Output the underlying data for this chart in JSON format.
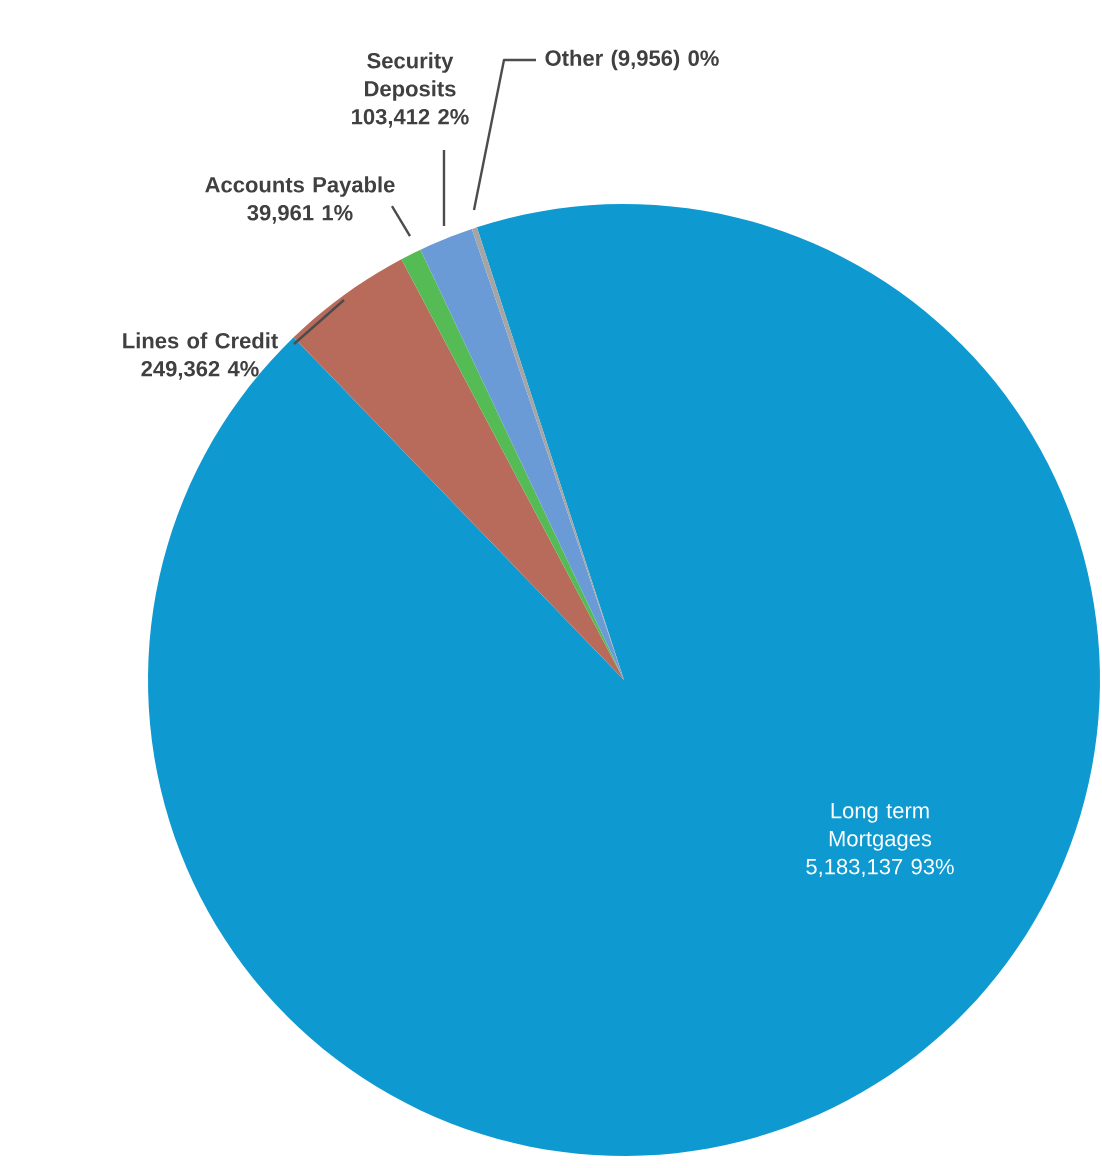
{
  "chart_data": {
    "type": "pie",
    "categories": [
      "Long term Mortgages",
      "Lines of Credit",
      "Accounts Payable",
      "Security Deposits",
      "Other"
    ],
    "values": [
      5183137,
      249362,
      39961,
      103412,
      9956
    ],
    "value_labels": [
      "5,183,137 93%",
      "249,362 4%",
      "39,961 1%",
      "103,412 2%",
      "(9,956) 0%"
    ],
    "colors": [
      "#0e9ad0",
      "#b96b5b",
      "#55bb55",
      "#6b9bd6",
      "#a5a5a5"
    ]
  }
}
